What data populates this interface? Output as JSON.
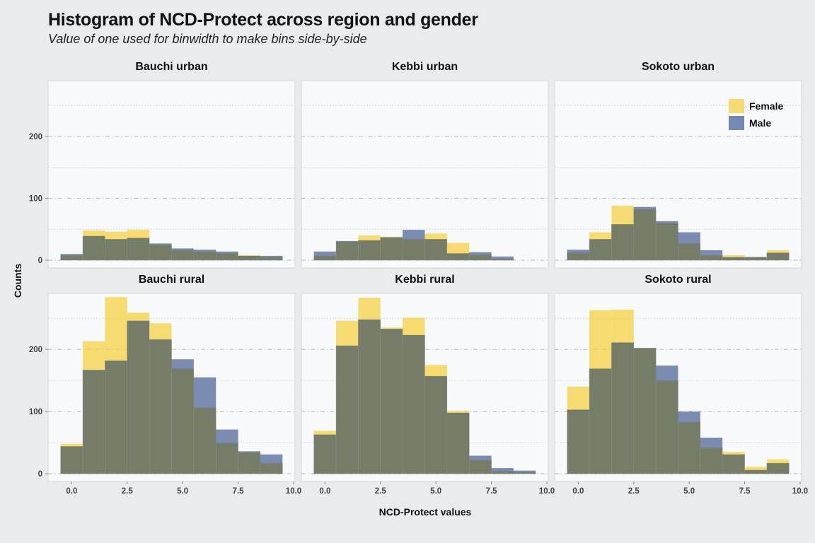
{
  "title": "Histogram of NCD-Protect across region and gender",
  "subtitle": "Value of one used for binwidth to make bins side-by-side",
  "chart_data": {
    "type": "bar",
    "subtype": "faceted-histogram-overlay",
    "xlabel": "NCD-Protect values",
    "ylabel": "Counts",
    "xlim": [
      -1,
      10
    ],
    "ylim": [
      0,
      290
    ],
    "x_ticks": [
      0.0,
      2.5,
      5.0,
      7.5,
      10.0
    ],
    "x_tick_labels": [
      "0.0",
      "2.5",
      "5.0",
      "7.5",
      "10.0"
    ],
    "y_ticks": [
      0,
      100,
      200
    ],
    "y_tick_labels": [
      "0",
      "100",
      "200"
    ],
    "bin_centers": [
      0,
      1,
      2,
      3,
      4,
      5,
      6,
      7,
      8,
      9
    ],
    "binwidth": 1,
    "grid": true,
    "legend_position": "top-right",
    "colors": {
      "Female": "#f5d142",
      "Male": "#4a6195",
      "overlap": "#757c68"
    },
    "series_names": [
      "Female",
      "Male"
    ],
    "panels": [
      {
        "label": "Bauchi urban",
        "Female": [
          8,
          48,
          46,
          49,
          25,
          16,
          14,
          11,
          8,
          5
        ],
        "Male": [
          10,
          39,
          34,
          36,
          27,
          19,
          17,
          14,
          7,
          7
        ]
      },
      {
        "label": "Kebbi urban",
        "Female": [
          7,
          30,
          40,
          38,
          34,
          43,
          28,
          9,
          2,
          0
        ],
        "Male": [
          14,
          31,
          32,
          37,
          49,
          34,
          11,
          13,
          6,
          0
        ]
      },
      {
        "label": "Sokoto urban",
        "Female": [
          12,
          45,
          88,
          82,
          60,
          27,
          8,
          8,
          5,
          16
        ],
        "Male": [
          17,
          34,
          58,
          86,
          63,
          45,
          16,
          5,
          5,
          12
        ]
      },
      {
        "label": "Bauchi rural",
        "Female": [
          48,
          213,
          284,
          259,
          242,
          169,
          106,
          49,
          34,
          17
        ],
        "Male": [
          44,
          167,
          182,
          246,
          216,
          184,
          155,
          71,
          36,
          31
        ]
      },
      {
        "label": "Kebbi rural",
        "Female": [
          69,
          246,
          283,
          235,
          251,
          175,
          101,
          22,
          4,
          2
        ],
        "Male": [
          63,
          206,
          248,
          233,
          223,
          157,
          98,
          29,
          9,
          5
        ]
      },
      {
        "label": "Sokoto rural",
        "Female": [
          140,
          263,
          264,
          202,
          150,
          83,
          42,
          35,
          11,
          23
        ],
        "Male": [
          103,
          169,
          211,
          202,
          174,
          100,
          58,
          31,
          6,
          17
        ]
      }
    ]
  }
}
